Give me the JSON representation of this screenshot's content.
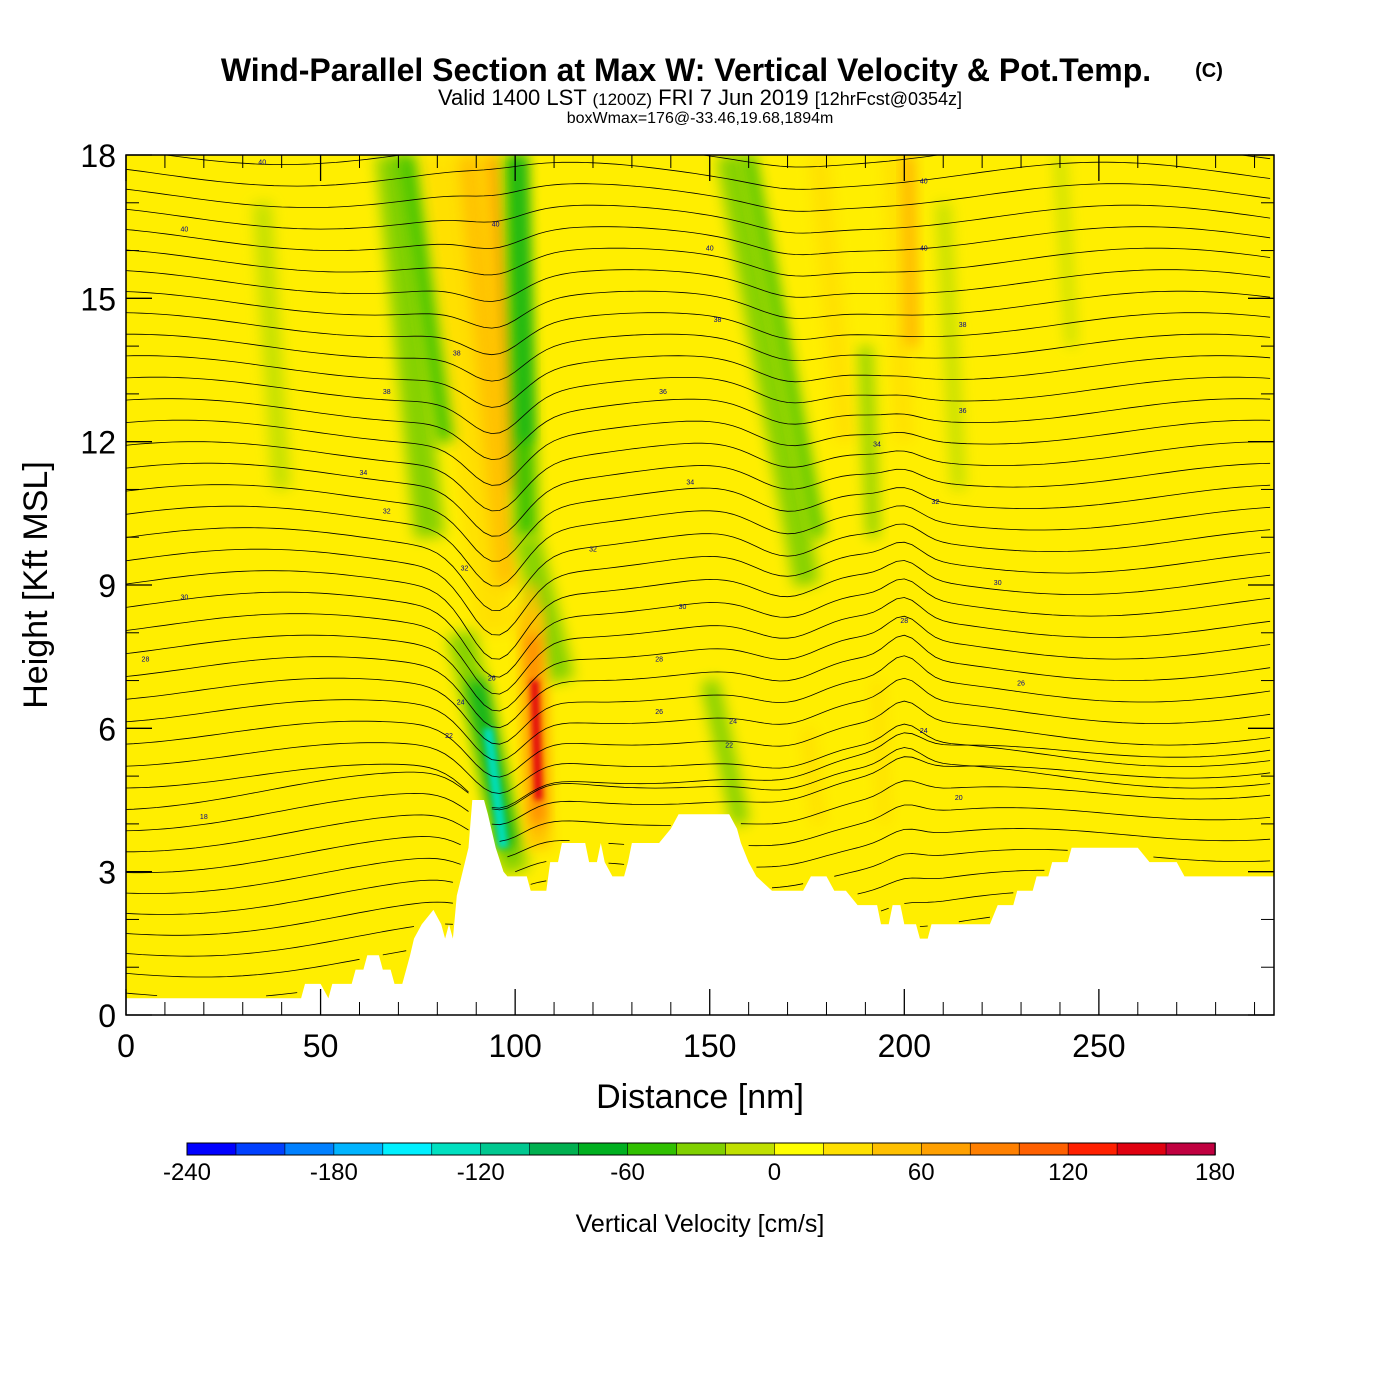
{
  "chart_data": {
    "type": "heatmap",
    "title": "Wind-Parallel Section at Max W: Vertical Velocity & Pot.Temp.",
    "title_mark": "(C)",
    "subtitle": {
      "valid": "Valid 1400 LST",
      "utc": "(1200Z)",
      "date": "FRI 7 Jun 2019",
      "fcst": "[12hrFcst@0354z]"
    },
    "box_info": "boxWmax=176@-33.46,19.68,1894m",
    "xlabel": "Distance [nm]",
    "ylabel": "Height [Kft MSL]",
    "xlim": [
      0,
      295
    ],
    "ylim": [
      0,
      18
    ],
    "xticks": [
      0,
      50,
      100,
      150,
      200,
      250
    ],
    "yticks": [
      0,
      3,
      6,
      9,
      12,
      15,
      18
    ],
    "xtick_labels": [
      "0",
      "50",
      "100",
      "150",
      "200",
      "250"
    ],
    "ytick_labels": [
      "0",
      "3",
      "6",
      "9",
      "12",
      "15",
      "18"
    ],
    "colorbar": {
      "label": "Vertical Velocity [cm/s]",
      "min": -240,
      "max": 180,
      "step": 20,
      "tick_labels": [
        "-240",
        "-180",
        "-120",
        "-60",
        "0",
        "60",
        "120",
        "180"
      ],
      "colors": [
        "#0000ff",
        "#0040ff",
        "#0080ff",
        "#00b4ff",
        "#00f0ff",
        "#00e0c0",
        "#00c890",
        "#00b050",
        "#00b020",
        "#30c000",
        "#80d000",
        "#c0e000",
        "#ffff00",
        "#ffe000",
        "#ffc000",
        "#ffa000",
        "#ff8000",
        "#ff6000",
        "#ff2000",
        "#e00010",
        "#c00040"
      ]
    },
    "terrain_kft": [
      [
        0,
        0.35
      ],
      [
        3,
        0.35
      ],
      [
        5,
        0.35
      ],
      [
        45,
        0.35
      ],
      [
        46,
        0.65
      ],
      [
        50,
        0.65
      ],
      [
        52,
        0.35
      ],
      [
        53,
        0.65
      ],
      [
        58,
        0.65
      ],
      [
        59,
        0.95
      ],
      [
        61,
        0.95
      ],
      [
        62,
        1.25
      ],
      [
        65,
        1.25
      ],
      [
        66,
        0.95
      ],
      [
        68,
        0.95
      ],
      [
        69,
        0.65
      ],
      [
        71,
        0.65
      ],
      [
        72,
        0.95
      ],
      [
        73,
        1.25
      ],
      [
        74,
        1.6
      ],
      [
        76,
        1.9
      ],
      [
        79,
        2.2
      ],
      [
        81,
        1.9
      ],
      [
        82,
        1.6
      ],
      [
        83,
        1.9
      ],
      [
        84,
        1.6
      ],
      [
        85,
        2.5
      ],
      [
        88,
        3.5
      ],
      [
        89,
        4.5
      ],
      [
        92,
        4.5
      ],
      [
        93,
        4.2
      ],
      [
        95,
        3.5
      ],
      [
        97,
        3.0
      ],
      [
        98,
        2.9
      ],
      [
        103,
        2.9
      ],
      [
        104,
        2.6
      ],
      [
        108,
        2.6
      ],
      [
        109,
        3.2
      ],
      [
        111,
        3.2
      ],
      [
        112,
        3.6
      ],
      [
        118,
        3.6
      ],
      [
        119,
        3.2
      ],
      [
        121,
        3.2
      ],
      [
        122,
        3.6
      ],
      [
        123,
        3.2
      ],
      [
        125,
        2.9
      ],
      [
        128,
        2.9
      ],
      [
        129,
        3.2
      ],
      [
        130,
        3.6
      ],
      [
        137,
        3.6
      ],
      [
        140,
        3.9
      ],
      [
        142,
        4.2
      ],
      [
        148,
        4.2
      ],
      [
        155,
        4.2
      ],
      [
        157,
        3.9
      ],
      [
        158,
        3.6
      ],
      [
        160,
        3.2
      ],
      [
        162,
        2.9
      ],
      [
        166,
        2.6
      ],
      [
        170,
        2.6
      ],
      [
        174,
        2.6
      ],
      [
        176,
        2.9
      ],
      [
        180,
        2.9
      ],
      [
        182,
        2.6
      ],
      [
        185,
        2.6
      ],
      [
        188,
        2.3
      ],
      [
        193,
        2.3
      ],
      [
        194,
        1.9
      ],
      [
        196,
        1.9
      ],
      [
        197,
        2.3
      ],
      [
        199,
        2.3
      ],
      [
        200,
        1.9
      ],
      [
        203,
        1.9
      ],
      [
        204,
        1.6
      ],
      [
        206,
        1.6
      ],
      [
        207,
        1.9
      ],
      [
        222,
        1.9
      ],
      [
        224,
        2.3
      ],
      [
        228,
        2.3
      ],
      [
        229,
        2.6
      ],
      [
        233,
        2.6
      ],
      [
        234,
        2.9
      ],
      [
        237,
        2.9
      ],
      [
        238,
        3.2
      ],
      [
        242,
        3.2
      ],
      [
        243,
        3.5
      ],
      [
        260,
        3.5
      ],
      [
        263,
        3.2
      ],
      [
        270,
        3.2
      ],
      [
        272,
        2.9
      ],
      [
        290,
        2.9
      ],
      [
        295,
        2.9
      ]
    ],
    "vertical_velocity_features": [
      {
        "type": "downdraft",
        "x_nm": [
          86,
          110
        ],
        "z_kft": [
          2.9,
          18
        ],
        "min_w": -160
      },
      {
        "type": "updraft",
        "x_nm": [
          99,
          110
        ],
        "z_kft": [
          2.6,
          10
        ],
        "max_w": 176
      },
      {
        "type": "updraft",
        "x_nm": [
          75,
          103
        ],
        "z_kft": [
          8,
          18
        ],
        "max_w": 60
      },
      {
        "type": "downdraft",
        "x_nm": [
          60,
          85
        ],
        "z_kft": [
          11,
          18
        ],
        "min_w": -60
      },
      {
        "type": "downdraft",
        "x_nm": [
          150,
          185
        ],
        "z_kft": [
          4,
          18
        ],
        "min_w": -70
      },
      {
        "type": "updraft",
        "x_nm": [
          185,
          205
        ],
        "z_kft": [
          3,
          18
        ],
        "max_w": 90
      },
      {
        "type": "downdraft",
        "x_nm": [
          190,
          205
        ],
        "z_kft": [
          10,
          14
        ],
        "min_w": -50
      }
    ],
    "theta_contour_labels": [
      "40",
      "40",
      "40",
      "40",
      "40",
      "40",
      "38",
      "38",
      "38",
      "38",
      "36",
      "36",
      "34",
      "34",
      "34",
      "32",
      "32",
      "32",
      "32",
      "30",
      "30",
      "30",
      "28",
      "28",
      "28",
      "26",
      "26",
      "26",
      "24",
      "24",
      "24",
      "22",
      "22",
      "20",
      "18"
    ]
  }
}
